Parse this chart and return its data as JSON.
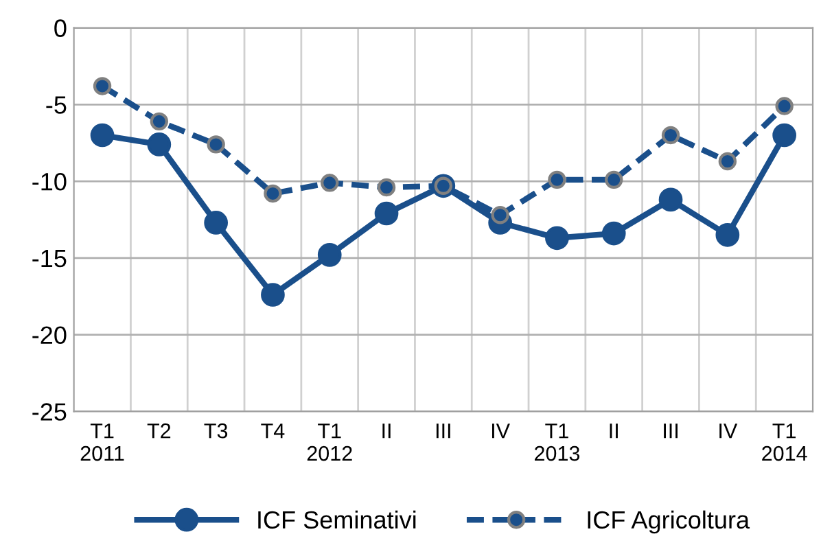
{
  "chart_data": {
    "type": "line",
    "categories": [
      "T1\n2011",
      "T2",
      "T3",
      "T4",
      "T1\n2012",
      "II",
      "III",
      "IV",
      "T1\n2013",
      "II",
      "III",
      "IV",
      "T1\n2014"
    ],
    "series": [
      {
        "name": "ICF Seminativi",
        "color": "#1a4f8b",
        "line_style": "solid",
        "values": [
          -7.0,
          -7.6,
          -12.7,
          -17.4,
          -14.8,
          -12.1,
          -10.3,
          -12.7,
          -13.7,
          -13.4,
          -11.2,
          -13.5,
          -7.0
        ]
      },
      {
        "name": "ICF Agricoltura",
        "color": "#1a4f8b",
        "line_style": "dashed",
        "values": [
          -3.8,
          -6.1,
          -7.6,
          -10.8,
          -10.1,
          -10.4,
          -10.3,
          -12.2,
          -9.9,
          -9.9,
          -7.0,
          -8.7,
          -5.1
        ]
      }
    ],
    "ylim": [
      -25,
      0
    ],
    "yticks": [
      -25,
      -20,
      -15,
      -10,
      -5,
      0
    ],
    "grid": true,
    "legend": "bottom",
    "marker": "circle"
  }
}
